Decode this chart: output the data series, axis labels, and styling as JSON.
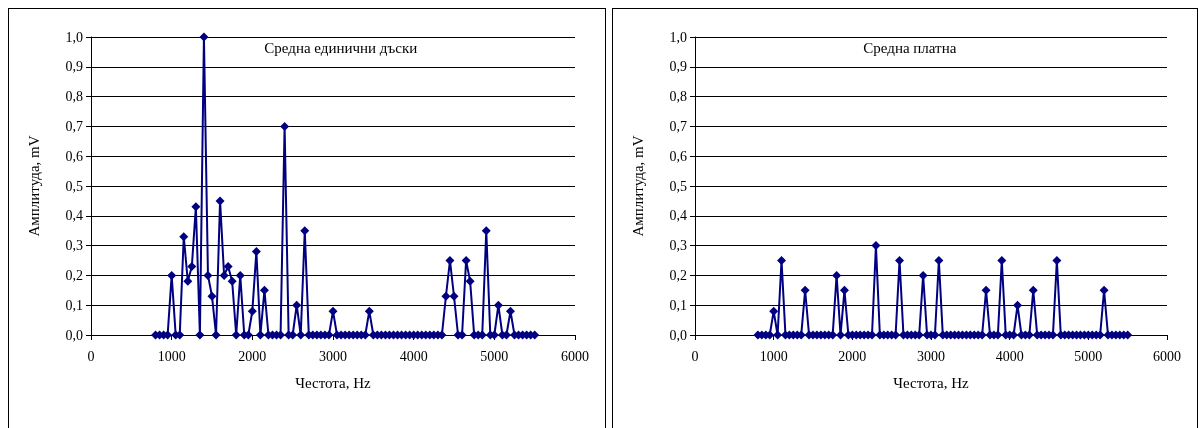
{
  "chart_data": [
    {
      "type": "line",
      "title": "Средна единични дъски",
      "xlabel": "Честота, Hz",
      "ylabel": "Амплитуда, mV",
      "marker": "diamond",
      "grid": "y",
      "color": "#000080",
      "x": [
        800,
        850,
        900,
        950,
        1000,
        1050,
        1100,
        1150,
        1200,
        1250,
        1300,
        1350,
        1400,
        1450,
        1500,
        1550,
        1600,
        1650,
        1700,
        1750,
        1800,
        1850,
        1900,
        1950,
        2000,
        2050,
        2100,
        2150,
        2200,
        2250,
        2300,
        2350,
        2400,
        2450,
        2500,
        2550,
        2600,
        2650,
        2700,
        2750,
        2800,
        2850,
        2900,
        2950,
        3000,
        3050,
        3100,
        3150,
        3200,
        3250,
        3300,
        3350,
        3400,
        3450,
        3500,
        3550,
        3600,
        3650,
        3700,
        3750,
        3800,
        3850,
        3900,
        3950,
        4000,
        4050,
        4100,
        4150,
        4200,
        4250,
        4300,
        4350,
        4400,
        4450,
        4500,
        4550,
        4600,
        4650,
        4700,
        4750,
        4800,
        4850,
        4900,
        4950,
        5000,
        5050,
        5100,
        5150,
        5200,
        5250,
        5300,
        5350,
        5400,
        5450,
        5500
      ],
      "values": [
        0,
        0,
        0,
        0,
        0.2,
        0,
        0,
        0.33,
        0.18,
        0.23,
        0.43,
        0,
        1.0,
        0.2,
        0.13,
        0,
        0.45,
        0.2,
        0.23,
        0.18,
        0,
        0.2,
        0,
        0,
        0.08,
        0.28,
        0,
        0.15,
        0,
        0,
        0,
        0,
        0.7,
        0,
        0,
        0.1,
        0,
        0.35,
        0,
        0,
        0,
        0,
        0,
        0,
        0.08,
        0,
        0,
        0,
        0,
        0,
        0,
        0,
        0,
        0.08,
        0,
        0,
        0,
        0,
        0,
        0,
        0,
        0,
        0,
        0,
        0,
        0,
        0,
        0,
        0,
        0,
        0,
        0,
        0.13,
        0.25,
        0.13,
        0,
        0,
        0.25,
        0.18,
        0,
        0,
        0,
        0.35,
        0,
        0,
        0.1,
        0,
        0,
        0.08,
        0,
        0,
        0,
        0,
        0,
        0
      ],
      "xlim": [
        0,
        6000
      ],
      "xticks": [
        0,
        1000,
        2000,
        3000,
        4000,
        5000,
        6000
      ],
      "ylim": [
        0,
        1
      ],
      "yticks": [
        {
          "value": 0,
          "label": "0,0"
        },
        {
          "value": 0.1,
          "label": "0,1"
        },
        {
          "value": 0.2,
          "label": "0,2"
        },
        {
          "value": 0.3,
          "label": "0,3"
        },
        {
          "value": 0.4,
          "label": "0,4"
        },
        {
          "value": 0.5,
          "label": "0,5"
        },
        {
          "value": 0.6,
          "label": "0,6"
        },
        {
          "value": 0.7,
          "label": "0,7"
        },
        {
          "value": 0.8,
          "label": "0,8"
        },
        {
          "value": 0.9,
          "label": "0,9"
        },
        {
          "value": 1,
          "label": "1,0"
        }
      ]
    },
    {
      "type": "line",
      "title": "Средна платна",
      "xlabel": "Честота, Hz",
      "ylabel": "Амплитуда, mV",
      "marker": "diamond",
      "grid": "y",
      "color": "#000080",
      "x": [
        800,
        850,
        900,
        950,
        1000,
        1050,
        1100,
        1150,
        1200,
        1250,
        1300,
        1350,
        1400,
        1450,
        1500,
        1550,
        1600,
        1650,
        1700,
        1750,
        1800,
        1850,
        1900,
        1950,
        2000,
        2050,
        2100,
        2150,
        2200,
        2250,
        2300,
        2350,
        2400,
        2450,
        2500,
        2550,
        2600,
        2650,
        2700,
        2750,
        2800,
        2850,
        2900,
        2950,
        3000,
        3050,
        3100,
        3150,
        3200,
        3250,
        3300,
        3350,
        3400,
        3450,
        3500,
        3550,
        3600,
        3650,
        3700,
        3750,
        3800,
        3850,
        3900,
        3950,
        4000,
        4050,
        4100,
        4150,
        4200,
        4250,
        4300,
        4350,
        4400,
        4450,
        4500,
        4550,
        4600,
        4650,
        4700,
        4750,
        4800,
        4850,
        4900,
        4950,
        5000,
        5050,
        5100,
        5150,
        5200,
        5250,
        5300,
        5350,
        5400,
        5450,
        5500
      ],
      "values": [
        0,
        0,
        0,
        0,
        0.08,
        0,
        0.25,
        0,
        0,
        0,
        0,
        0,
        0.15,
        0,
        0,
        0,
        0,
        0,
        0,
        0,
        0.2,
        0,
        0.15,
        0,
        0,
        0,
        0,
        0,
        0,
        0,
        0.3,
        0,
        0,
        0,
        0,
        0,
        0.25,
        0,
        0,
        0,
        0,
        0,
        0.2,
        0,
        0,
        0,
        0.25,
        0,
        0,
        0,
        0,
        0,
        0,
        0,
        0,
        0,
        0,
        0,
        0.15,
        0,
        0,
        0,
        0.25,
        0,
        0,
        0,
        0.1,
        0,
        0,
        0,
        0.15,
        0,
        0,
        0,
        0,
        0,
        0.25,
        0,
        0,
        0,
        0,
        0,
        0,
        0,
        0,
        0,
        0,
        0,
        0.15,
        0,
        0,
        0,
        0,
        0,
        0
      ],
      "xlim": [
        0,
        6000
      ],
      "xticks": [
        0,
        1000,
        2000,
        3000,
        4000,
        5000,
        6000
      ],
      "ylim": [
        0,
        1
      ],
      "yticks": [
        {
          "value": 0,
          "label": "0,0"
        },
        {
          "value": 0.1,
          "label": "0,1"
        },
        {
          "value": 0.2,
          "label": "0,2"
        },
        {
          "value": 0.3,
          "label": "0,3"
        },
        {
          "value": 0.4,
          "label": "0,4"
        },
        {
          "value": 0.5,
          "label": "0,5"
        },
        {
          "value": 0.6,
          "label": "0,6"
        },
        {
          "value": 0.7,
          "label": "0,7"
        },
        {
          "value": 0.8,
          "label": "0,8"
        },
        {
          "value": 0.9,
          "label": "0,9"
        },
        {
          "value": 1,
          "label": "1,0"
        }
      ]
    }
  ]
}
